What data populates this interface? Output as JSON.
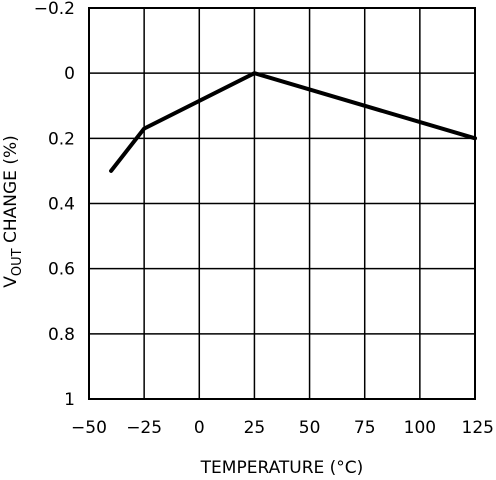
{
  "chart_data": {
    "type": "line",
    "title": "",
    "xlabel": "TEMPERATURE (°C)",
    "ylabel": {
      "prefix": "V",
      "subscript": "OUT",
      "suffix": " CHANGE (%)"
    },
    "xlim": [
      -50,
      125
    ],
    "ylim": [
      -0.2,
      1
    ],
    "y_inverted": true,
    "grid": true,
    "x_ticks": [
      -50,
      -25,
      0,
      25,
      50,
      75,
      100,
      125
    ],
    "x_tick_labels": [
      "−50",
      "−25",
      "0",
      "25",
      "50",
      "75",
      "100",
      "125"
    ],
    "y_ticks": [
      -0.2,
      0,
      0.2,
      0.4,
      0.6,
      0.8,
      1
    ],
    "y_tick_labels": [
      "−0.2",
      "0",
      "0.2",
      "0.4",
      "0.6",
      "0.8",
      "1"
    ],
    "series": [
      {
        "x": [
          -40,
          -25,
          25,
          125
        ],
        "y": [
          0.3,
          0.17,
          0.0,
          0.2
        ],
        "color": "#000000"
      }
    ]
  }
}
